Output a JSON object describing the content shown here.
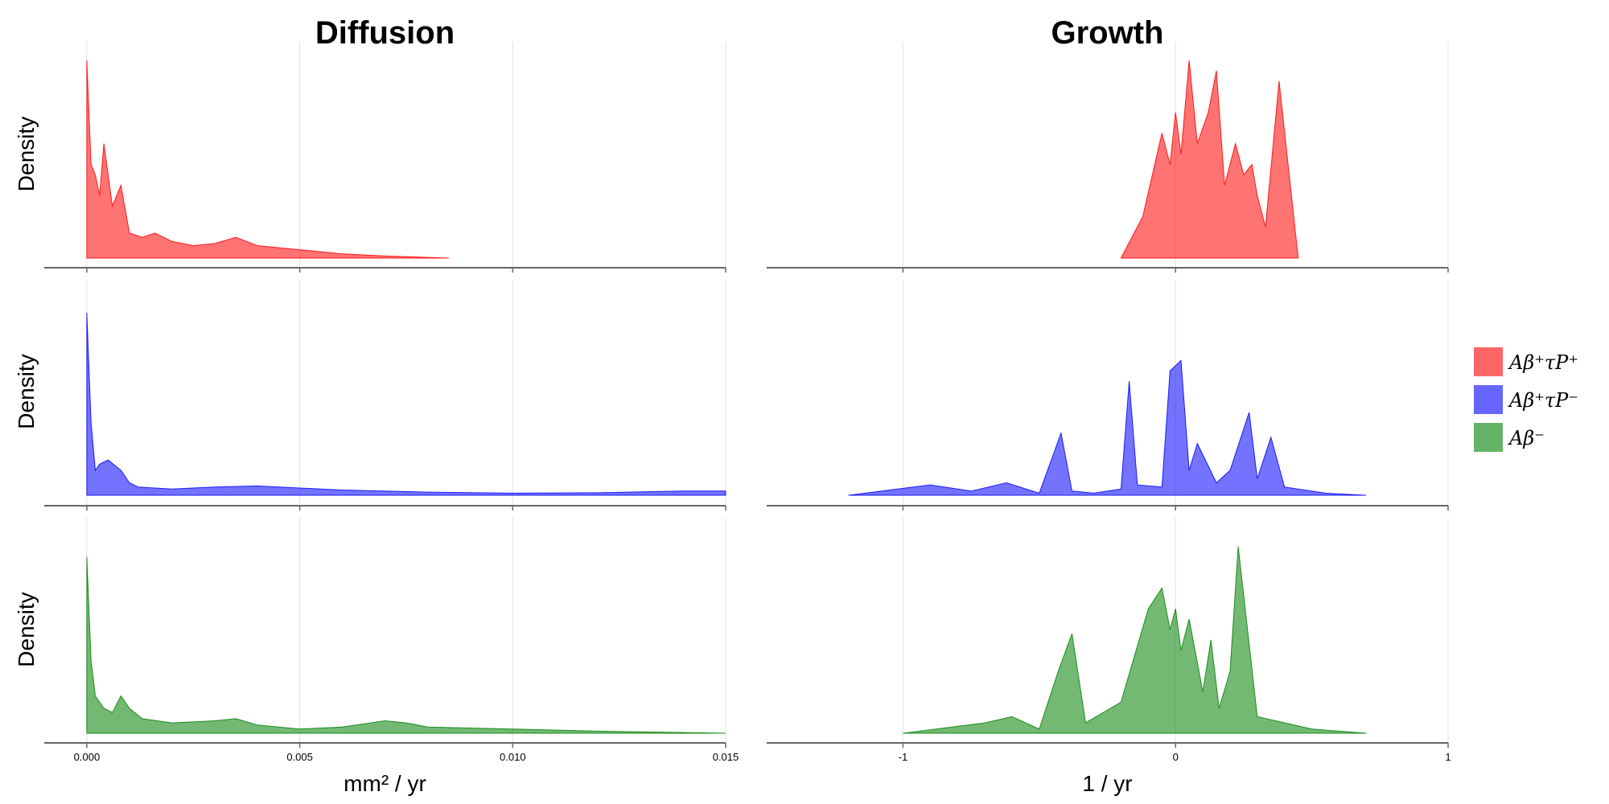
{
  "chart_data": [
    {
      "type": "area",
      "panel": "diffusion-row-1",
      "title": "Diffusion",
      "xlabel": "",
      "ylabel": "Density",
      "xlim": [
        -0.001,
        0.015
      ],
      "xticks": [
        "0.000",
        "0.005",
        "0.010",
        "0.015"
      ],
      "xtick_values": [
        0,
        0.005,
        0.01,
        0.015
      ],
      "grid": true,
      "series": [
        {
          "color": "#ff0000",
          "x": [
            0.0,
            0.0001,
            0.0002,
            0.0003,
            0.0004,
            0.0006,
            0.0008,
            0.001,
            0.0013,
            0.0016,
            0.002,
            0.0025,
            0.003,
            0.0035,
            0.004,
            0.005,
            0.006,
            0.007,
            0.0085
          ],
          "y": [
            0.95,
            0.45,
            0.4,
            0.3,
            0.55,
            0.25,
            0.35,
            0.12,
            0.1,
            0.12,
            0.08,
            0.06,
            0.07,
            0.1,
            0.06,
            0.04,
            0.02,
            0.01,
            0.0
          ]
        }
      ]
    },
    {
      "type": "area",
      "panel": "growth-row-1",
      "title": "Growth",
      "xlabel": "",
      "ylabel": "",
      "xlim": [
        -1.5,
        1.0
      ],
      "xticks": [
        "-1",
        "0",
        "1"
      ],
      "xtick_values": [
        -1,
        0,
        1
      ],
      "grid": true,
      "series": [
        {
          "color": "#ff0000",
          "x": [
            -0.2,
            -0.12,
            -0.05,
            -0.02,
            0.0,
            0.02,
            0.05,
            0.08,
            0.12,
            0.15,
            0.18,
            0.22,
            0.25,
            0.28,
            0.3,
            0.33,
            0.38,
            0.45
          ],
          "y": [
            0.0,
            0.2,
            0.6,
            0.45,
            0.7,
            0.5,
            0.95,
            0.55,
            0.7,
            0.9,
            0.35,
            0.55,
            0.4,
            0.45,
            0.3,
            0.15,
            0.85,
            0.0
          ]
        }
      ]
    },
    {
      "type": "area",
      "panel": "diffusion-row-2",
      "xlabel": "",
      "ylabel": "Density",
      "xlim": [
        -0.001,
        0.015
      ],
      "xticks": [
        "0.000",
        "0.005",
        "0.010",
        "0.015"
      ],
      "xtick_values": [
        0,
        0.005,
        0.01,
        0.015
      ],
      "grid": true,
      "series": [
        {
          "color": "#0000ff",
          "x": [
            0.0,
            0.0001,
            0.0002,
            0.0003,
            0.0005,
            0.0008,
            0.001,
            0.0012,
            0.002,
            0.003,
            0.004,
            0.005,
            0.006,
            0.008,
            0.01,
            0.012,
            0.014,
            0.015
          ],
          "y": [
            0.88,
            0.35,
            0.12,
            0.15,
            0.17,
            0.12,
            0.06,
            0.04,
            0.03,
            0.04,
            0.045,
            0.035,
            0.025,
            0.015,
            0.01,
            0.012,
            0.02,
            0.02
          ]
        }
      ]
    },
    {
      "type": "area",
      "panel": "growth-row-2",
      "xlabel": "",
      "ylabel": "",
      "xlim": [
        -1.5,
        1.0
      ],
      "xticks": [
        "-1",
        "0",
        "1"
      ],
      "xtick_values": [
        -1,
        0,
        1
      ],
      "grid": true,
      "series": [
        {
          "color": "#0000ff",
          "x": [
            -1.2,
            -0.9,
            -0.75,
            -0.62,
            -0.5,
            -0.42,
            -0.38,
            -0.3,
            -0.2,
            -0.17,
            -0.14,
            -0.05,
            -0.02,
            0.02,
            0.05,
            0.08,
            0.15,
            0.2,
            0.27,
            0.3,
            0.35,
            0.4,
            0.55,
            0.7
          ],
          "y": [
            0.0,
            0.05,
            0.02,
            0.06,
            0.01,
            0.3,
            0.02,
            0.01,
            0.03,
            0.55,
            0.05,
            0.04,
            0.6,
            0.65,
            0.12,
            0.25,
            0.06,
            0.12,
            0.4,
            0.08,
            0.28,
            0.04,
            0.01,
            0.0
          ]
        }
      ]
    },
    {
      "type": "area",
      "panel": "diffusion-row-3",
      "xlabel": "mm² / yr",
      "ylabel": "Density",
      "xlim": [
        -0.001,
        0.015
      ],
      "xticks": [
        "0.000",
        "0.005",
        "0.010",
        "0.015"
      ],
      "xtick_values": [
        0,
        0.005,
        0.01,
        0.015
      ],
      "grid": true,
      "series": [
        {
          "color": "#008000",
          "x": [
            0.0,
            0.0001,
            0.0002,
            0.0004,
            0.0006,
            0.0008,
            0.001,
            0.0013,
            0.002,
            0.003,
            0.0035,
            0.004,
            0.005,
            0.006,
            0.007,
            0.0075,
            0.008,
            0.01,
            0.012,
            0.015
          ],
          "y": [
            0.85,
            0.35,
            0.18,
            0.12,
            0.1,
            0.18,
            0.12,
            0.07,
            0.05,
            0.06,
            0.07,
            0.04,
            0.02,
            0.03,
            0.06,
            0.05,
            0.03,
            0.02,
            0.01,
            0.0
          ]
        }
      ]
    },
    {
      "type": "area",
      "panel": "growth-row-3",
      "xlabel": "1 / yr",
      "ylabel": "",
      "xlim": [
        -1.5,
        1.0
      ],
      "xticks": [
        "-1",
        "0",
        "1"
      ],
      "xtick_values": [
        -1,
        0,
        1
      ],
      "grid": true,
      "series": [
        {
          "color": "#008000",
          "x": [
            -1.0,
            -0.7,
            -0.6,
            -0.5,
            -0.43,
            -0.38,
            -0.33,
            -0.2,
            -0.1,
            -0.05,
            -0.02,
            0.0,
            0.02,
            0.05,
            0.1,
            0.13,
            0.16,
            0.2,
            0.23,
            0.3,
            0.5,
            0.7
          ],
          "y": [
            0.0,
            0.05,
            0.08,
            0.02,
            0.3,
            0.48,
            0.05,
            0.15,
            0.6,
            0.7,
            0.5,
            0.6,
            0.4,
            0.55,
            0.2,
            0.45,
            0.12,
            0.3,
            0.9,
            0.08,
            0.02,
            0.0
          ]
        }
      ]
    }
  ],
  "legend": {
    "position": "right",
    "items": [
      {
        "label": "Aβ⁺τP⁺",
        "color": "#ff6666"
      },
      {
        "label": "Aβ⁺τP⁻",
        "color": "#6666ff"
      },
      {
        "label": "Aβ⁻",
        "color": "#66b266"
      }
    ]
  }
}
